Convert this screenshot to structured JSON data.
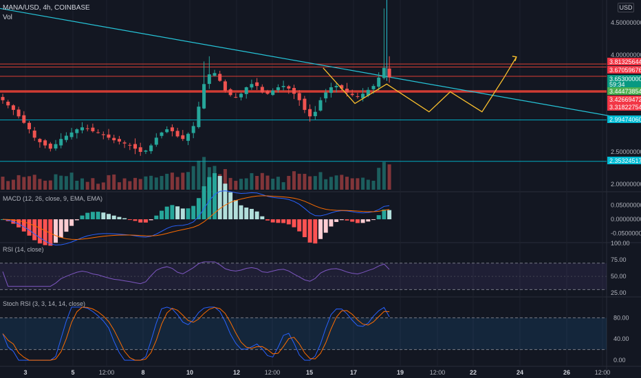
{
  "header": {
    "symbol_line": "MANA/USD, 4h, COINBASE",
    "vol_label": "Vol",
    "currency_button": "USD"
  },
  "indicators": {
    "macd_title": "MACD (12, 26, close, 9, EMA, EMA)",
    "rsi_title": "RSI (14, close)",
    "stoch_title": "Stoch RSI (3, 3, 14, 14, close)"
  },
  "colors": {
    "background": "#131722",
    "up": "#26a69a",
    "down": "#ef5350",
    "trendline": "#26c6da",
    "support_line": "#00bcd4",
    "resistance_line": "#f44336",
    "pattern": "#fbc02d",
    "macd_line": "#2962ff",
    "signal_line": "#ff6d00",
    "rsi_line": "#7e57c2"
  },
  "chart_data": [
    {
      "type": "candlestick",
      "pane": "price",
      "x_ticks": [
        "3",
        "5",
        "12:00",
        "8",
        "10",
        "12",
        "12:00",
        "15",
        "17",
        "19",
        "12:00",
        "22",
        "24",
        "26",
        "12:00"
      ],
      "y_ticks": [
        "4.50000000",
        "4.00000000",
        "2.50000000",
        "2.00000000"
      ],
      "ylim": [
        2.0,
        4.7
      ],
      "price_labels": [
        {
          "value": "3.81325644",
          "color": "#f23645"
        },
        {
          "value": "3.67059676",
          "color": "#f23645"
        },
        {
          "value": "3.65300000",
          "color": "#089981"
        },
        {
          "value": "59:34",
          "color": "#089981"
        },
        {
          "value": "3.44473854",
          "color": "#4caf50"
        },
        {
          "value": "3.42669472",
          "color": "#f23645"
        },
        {
          "value": "3.31822754",
          "color": "#f23645"
        },
        {
          "value": "2.99474060",
          "color": "#00bcd4"
        },
        {
          "value": "2.35324517",
          "color": "#00bcd4"
        }
      ],
      "horizontal_levels": [
        3.86,
        3.81325644,
        3.67059676,
        3.44473854,
        3.42669472,
        2.9947406,
        2.35324517
      ],
      "trendline": {
        "from": [
          0,
          4.72
        ],
        "to": [
          148,
          2.56
        ]
      },
      "close_path": [
        3.3,
        3.22,
        3.15,
        3.05,
        2.95,
        2.85,
        2.72,
        2.65,
        2.6,
        2.55,
        2.62,
        2.7,
        2.75,
        2.8,
        2.85,
        2.88,
        2.86,
        2.82,
        2.8,
        2.76,
        2.72,
        2.68,
        2.66,
        2.63,
        2.6,
        2.55,
        2.5,
        2.52,
        2.6,
        2.72,
        2.8,
        2.85,
        2.82,
        2.74,
        2.7,
        2.78,
        2.9,
        3.2,
        3.55,
        3.7,
        3.72,
        3.6,
        3.45,
        3.38,
        3.35,
        3.4,
        3.5,
        3.55,
        3.52,
        3.42,
        3.4,
        3.45,
        3.5,
        3.52,
        3.48,
        3.4,
        3.3,
        3.15,
        3.05,
        3.12,
        3.3,
        3.42,
        3.5,
        3.52,
        3.48,
        3.42,
        3.38,
        3.36,
        3.4,
        3.46,
        3.52,
        3.65,
        3.8,
        3.653
      ],
      "pattern_points": [
        [
          60.5,
          3.8
        ],
        [
          66.5,
          3.25
        ],
        [
          72.5,
          3.55
        ],
        [
          80.5,
          3.12
        ],
        [
          84.5,
          3.43
        ],
        [
          90.5,
          3.12
        ],
        [
          94.5,
          3.63
        ],
        [
          97,
          3.97
        ]
      ]
    },
    {
      "type": "bar",
      "pane": "volume",
      "y_ticks": []
    },
    {
      "type": "line",
      "pane": "macd",
      "y_ticks": [
        "0.05000000",
        "0.00000000",
        "-0.05000000"
      ],
      "ylim": [
        -0.07,
        0.08
      ]
    },
    {
      "type": "line",
      "pane": "rsi",
      "y_ticks": [
        "100.00",
        "75.00",
        "50.00",
        "25.00"
      ],
      "ylim": [
        20,
        100
      ],
      "bands": [
        70,
        30
      ]
    },
    {
      "type": "line",
      "pane": "stoch_rsi",
      "y_ticks": [
        "80.00",
        "40.00",
        "0.00"
      ],
      "ylim": [
        -5,
        110
      ],
      "bands": [
        80,
        20
      ]
    }
  ]
}
